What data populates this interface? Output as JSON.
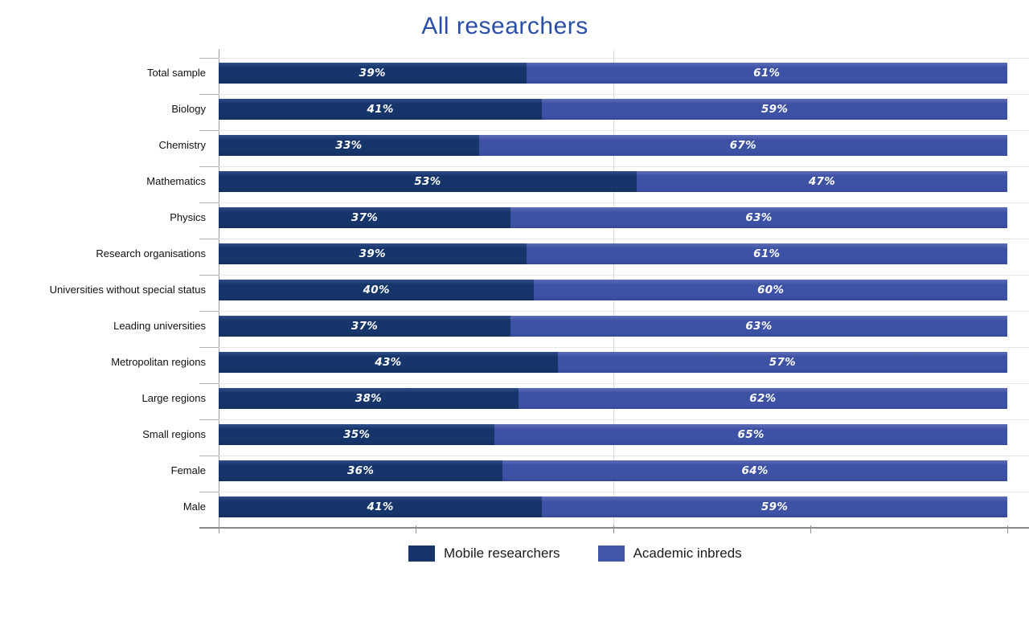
{
  "chart_data": {
    "type": "bar",
    "orientation": "horizontal",
    "stacked": true,
    "title": "All researchers",
    "title_color": "#2b4fa8",
    "categories": [
      "Total sample",
      "Biology",
      "Chemistry",
      "Mathematics",
      "Physics",
      "Research organisations",
      "Universities without special status",
      "Leading universities",
      "Metropolitan regions",
      "Large regions",
      "Small regions",
      "Female",
      "Male"
    ],
    "series": [
      {
        "name": "Mobile researchers",
        "color": "#16356b",
        "values": [
          39,
          41,
          33,
          53,
          37,
          39,
          40,
          37,
          43,
          38,
          35,
          36,
          41
        ]
      },
      {
        "name": "Academic inbreds",
        "color": "#3e52a5",
        "values": [
          61,
          59,
          67,
          47,
          63,
          61,
          60,
          63,
          57,
          62,
          65,
          64,
          59
        ]
      }
    ],
    "value_suffix": "%",
    "xlim": [
      0,
      100
    ],
    "x_tick_positions_pct": [
      0,
      25,
      50,
      75,
      100
    ],
    "grid": {
      "vertical_line_pct": 50,
      "horizontal_category_lines": true
    },
    "legend_position": "bottom"
  },
  "legend": {
    "items": [
      {
        "label": "Mobile researchers",
        "color": "#16356b"
      },
      {
        "label": "Academic inbreds",
        "color": "#4156ab"
      }
    ]
  }
}
